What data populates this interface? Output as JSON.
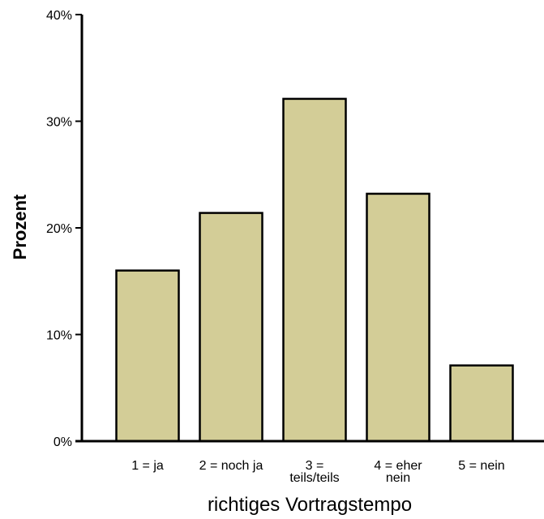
{
  "chart_data": {
    "type": "bar",
    "categories": [
      "1 = ja",
      "2 = noch ja",
      "3 = teils/teils",
      "4 = eher nein",
      "5 = nein"
    ],
    "category_lines": [
      [
        "1 = ja"
      ],
      [
        "2 = noch ja"
      ],
      [
        "3 =",
        "teils/teils"
      ],
      [
        "4 = eher",
        "nein"
      ],
      [
        "5 = nein"
      ]
    ],
    "values": [
      16.0,
      21.4,
      32.1,
      23.2,
      7.1
    ],
    "xlabel": "richtiges Vortragstempo",
    "ylabel": "Prozent",
    "ylim": [
      0,
      40
    ],
    "yticks": [
      0,
      10,
      20,
      30,
      40
    ],
    "ytick_labels": [
      "0%",
      "10%",
      "20%",
      "30%",
      "40%"
    ],
    "grid": false,
    "legend": "none",
    "bar_color": "#d3cd97",
    "bar_edge_color": "#000000"
  }
}
